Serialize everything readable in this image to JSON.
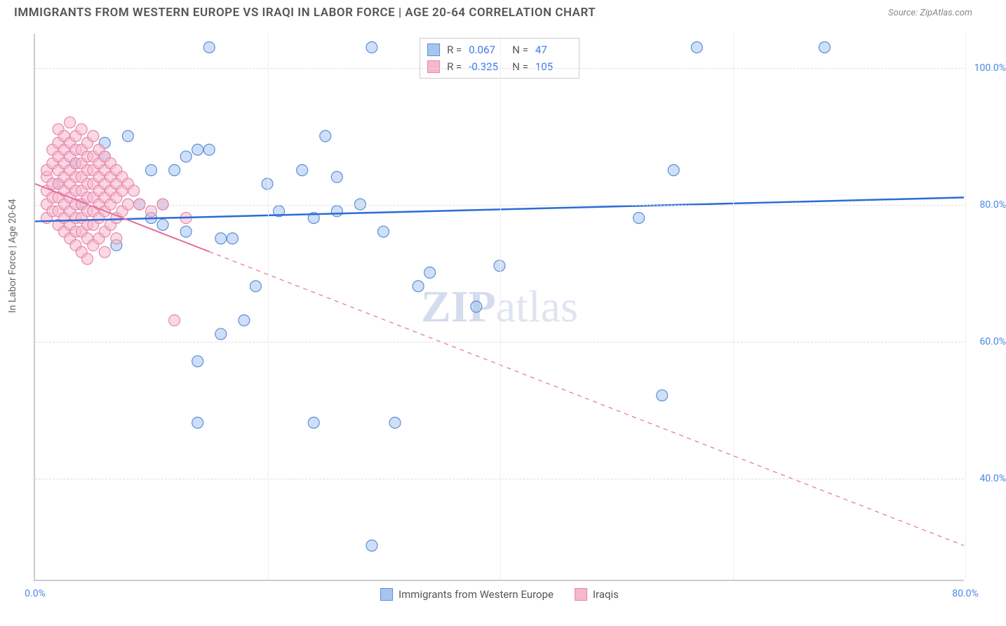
{
  "title": "IMMIGRANTS FROM WESTERN EUROPE VS IRAQI IN LABOR FORCE | AGE 20-64 CORRELATION CHART",
  "source": "Source: ZipAtlas.com",
  "watermark_bold": "ZIP",
  "watermark_rest": "atlas",
  "y_axis_label": "In Labor Force | Age 20-64",
  "chart": {
    "type": "scatter",
    "background_color": "#ffffff",
    "grid_color": "#dddddd",
    "axis_color": "#cccccc",
    "xlim": [
      0,
      80
    ],
    "ylim": [
      25,
      105
    ],
    "x_ticks": [
      0,
      20,
      40,
      60,
      80
    ],
    "x_tick_labels": [
      "0.0%",
      "",
      "",
      "",
      "80.0%"
    ],
    "y_ticks": [
      40,
      60,
      80,
      100
    ],
    "y_tick_labels": [
      "40.0%",
      "60.0%",
      "80.0%",
      "100.0%"
    ],
    "marker_radius": 8,
    "marker_opacity": 0.55,
    "marker_stroke_width": 1.2,
    "series": [
      {
        "name": "Immigrants from Western Europe",
        "color_fill": "#a8c5f0",
        "color_stroke": "#5b8fd9",
        "R": "0.067",
        "N": "47",
        "trend": {
          "x1": 0,
          "y1": 77.5,
          "x2": 80,
          "y2": 81,
          "solid_until_x": 80,
          "color": "#2b6cd4",
          "width": 2.5
        },
        "points": [
          [
            15,
            103
          ],
          [
            29,
            103
          ],
          [
            57,
            103
          ],
          [
            68,
            103
          ],
          [
            3.5,
            86
          ],
          [
            6,
            89
          ],
          [
            6,
            87
          ],
          [
            8,
            90
          ],
          [
            9,
            80
          ],
          [
            10,
            78
          ],
          [
            10,
            85
          ],
          [
            11,
            77
          ],
          [
            11,
            80
          ],
          [
            12,
            85
          ],
          [
            13,
            87
          ],
          [
            13,
            76
          ],
          [
            14,
            88
          ],
          [
            15,
            88
          ],
          [
            16,
            75
          ],
          [
            16,
            61
          ],
          [
            17,
            75
          ],
          [
            18,
            63
          ],
          [
            19,
            68
          ],
          [
            21,
            79
          ],
          [
            23,
            85
          ],
          [
            24,
            78
          ],
          [
            25,
            90
          ],
          [
            26,
            84
          ],
          [
            26,
            79
          ],
          [
            28,
            80
          ],
          [
            30,
            76
          ],
          [
            31,
            48
          ],
          [
            33,
            68
          ],
          [
            34,
            70
          ],
          [
            38,
            65
          ],
          [
            40,
            71
          ],
          [
            52,
            78
          ],
          [
            54,
            52
          ],
          [
            55,
            85
          ],
          [
            2,
            83
          ],
          [
            4,
            80
          ],
          [
            7,
            74
          ],
          [
            14,
            57
          ],
          [
            20,
            83
          ],
          [
            29,
            30
          ],
          [
            14,
            48
          ],
          [
            24,
            48
          ]
        ]
      },
      {
        "name": "Iraqis",
        "color_fill": "#f5b8ce",
        "color_stroke": "#e887aa",
        "R": "-0.325",
        "N": "105",
        "trend": {
          "x1": 0,
          "y1": 83,
          "x2": 80,
          "y2": 30,
          "solid_until_x": 15,
          "color": "#e56f9a",
          "width": 2
        },
        "points": [
          [
            1,
            82
          ],
          [
            1,
            84
          ],
          [
            1,
            85
          ],
          [
            1,
            80
          ],
          [
            1,
            78
          ],
          [
            1.5,
            88
          ],
          [
            1.5,
            86
          ],
          [
            1.5,
            83
          ],
          [
            1.5,
            81
          ],
          [
            1.5,
            79
          ],
          [
            2,
            91
          ],
          [
            2,
            89
          ],
          [
            2,
            87
          ],
          [
            2,
            85
          ],
          [
            2,
            83
          ],
          [
            2,
            81
          ],
          [
            2,
            79
          ],
          [
            2,
            77
          ],
          [
            2.5,
            90
          ],
          [
            2.5,
            88
          ],
          [
            2.5,
            86
          ],
          [
            2.5,
            84
          ],
          [
            2.5,
            82
          ],
          [
            2.5,
            80
          ],
          [
            2.5,
            78
          ],
          [
            2.5,
            76
          ],
          [
            3,
            92
          ],
          [
            3,
            89
          ],
          [
            3,
            87
          ],
          [
            3,
            85
          ],
          [
            3,
            83
          ],
          [
            3,
            81
          ],
          [
            3,
            79
          ],
          [
            3,
            77
          ],
          [
            3,
            75
          ],
          [
            3.5,
            90
          ],
          [
            3.5,
            88
          ],
          [
            3.5,
            86
          ],
          [
            3.5,
            84
          ],
          [
            3.5,
            82
          ],
          [
            3.5,
            80
          ],
          [
            3.5,
            78
          ],
          [
            3.5,
            76
          ],
          [
            3.5,
            74
          ],
          [
            4,
            91
          ],
          [
            4,
            88
          ],
          [
            4,
            86
          ],
          [
            4,
            84
          ],
          [
            4,
            82
          ],
          [
            4,
            80
          ],
          [
            4,
            78
          ],
          [
            4,
            76
          ],
          [
            4,
            73
          ],
          [
            4.5,
            89
          ],
          [
            4.5,
            87
          ],
          [
            4.5,
            85
          ],
          [
            4.5,
            83
          ],
          [
            4.5,
            81
          ],
          [
            4.5,
            79
          ],
          [
            4.5,
            77
          ],
          [
            4.5,
            75
          ],
          [
            4.5,
            72
          ],
          [
            5,
            90
          ],
          [
            5,
            87
          ],
          [
            5,
            85
          ],
          [
            5,
            83
          ],
          [
            5,
            81
          ],
          [
            5,
            79
          ],
          [
            5,
            77
          ],
          [
            5,
            74
          ],
          [
            5.5,
            88
          ],
          [
            5.5,
            86
          ],
          [
            5.5,
            84
          ],
          [
            5.5,
            82
          ],
          [
            5.5,
            80
          ],
          [
            5.5,
            78
          ],
          [
            5.5,
            75
          ],
          [
            6,
            87
          ],
          [
            6,
            85
          ],
          [
            6,
            83
          ],
          [
            6,
            81
          ],
          [
            6,
            79
          ],
          [
            6,
            76
          ],
          [
            6,
            73
          ],
          [
            6.5,
            86
          ],
          [
            6.5,
            84
          ],
          [
            6.5,
            82
          ],
          [
            6.5,
            80
          ],
          [
            6.5,
            77
          ],
          [
            7,
            85
          ],
          [
            7,
            83
          ],
          [
            7,
            81
          ],
          [
            7,
            78
          ],
          [
            7,
            75
          ],
          [
            7.5,
            84
          ],
          [
            7.5,
            82
          ],
          [
            7.5,
            79
          ],
          [
            8,
            83
          ],
          [
            8,
            80
          ],
          [
            8.5,
            82
          ],
          [
            9,
            80
          ],
          [
            10,
            79
          ],
          [
            12,
            63
          ],
          [
            11,
            80
          ],
          [
            13,
            78
          ]
        ]
      }
    ]
  },
  "bottom_legend": [
    {
      "label": "Immigrants from Western Europe",
      "fill": "#a8c5f0",
      "stroke": "#5b8fd9"
    },
    {
      "label": "Iraqis",
      "fill": "#f5b8ce",
      "stroke": "#e887aa"
    }
  ]
}
